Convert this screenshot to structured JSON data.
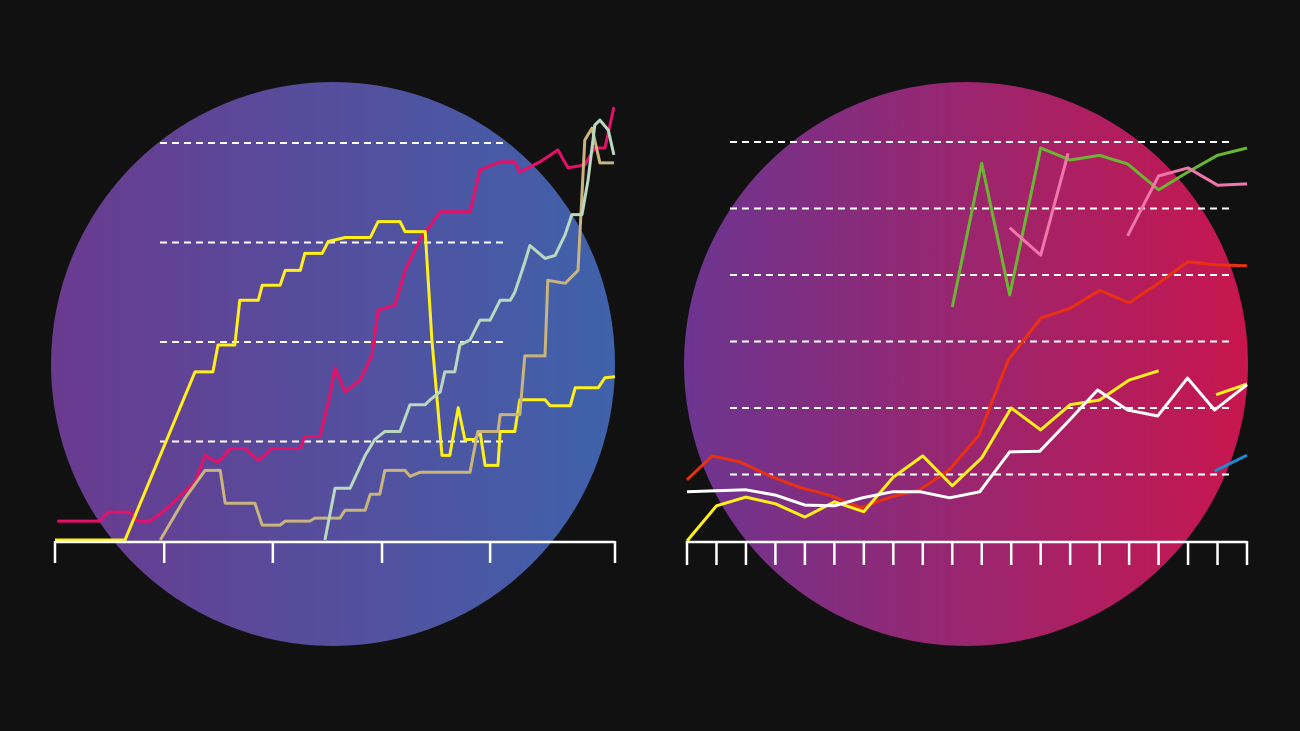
{
  "colors": {
    "background": "#111111",
    "left_circle": [
      "#6a3a8f",
      "#3f62ab"
    ],
    "right_circle": [
      "#6c3590",
      "#c8164e"
    ],
    "grid": "#ffffff",
    "axis": "#ffffff"
  },
  "chart_data": [
    {
      "type": "line",
      "step_style": true,
      "grid": true,
      "grid_style": "dashed",
      "xlim": [
        0,
        100
      ],
      "ylim": [
        0,
        5
      ],
      "gridlines_y": [
        1,
        2,
        3,
        4
      ],
      "x_ticks": [
        0,
        19.5,
        38.9,
        58.4,
        77.7,
        100
      ],
      "series": [
        {
          "color": "#e5106a",
          "points": [
            [
              0.4,
              0.2
            ],
            [
              8,
              0.2
            ],
            [
              9.5,
              0.29
            ],
            [
              13.4,
              0.29
            ],
            [
              14.8,
              0.2
            ],
            [
              17,
              0.2
            ],
            [
              19.6,
              0.31
            ],
            [
              25,
              0.59
            ],
            [
              26.8,
              0.86
            ],
            [
              29.1,
              0.79
            ],
            [
              31.3,
              0.93
            ],
            [
              33.9,
              0.93
            ],
            [
              36.3,
              0.81
            ],
            [
              38.8,
              0.93
            ],
            [
              43.8,
              0.93
            ],
            [
              44.6,
              1.05
            ],
            [
              47.3,
              1.05
            ],
            [
              49.1,
              1.47
            ],
            [
              50,
              1.74
            ],
            [
              51.8,
              1.5
            ],
            [
              54.5,
              1.62
            ],
            [
              56.6,
              1.87
            ],
            [
              57.7,
              2.32
            ],
            [
              60.7,
              2.37
            ],
            [
              62.5,
              2.72
            ],
            [
              65.2,
              3.03
            ],
            [
              68.8,
              3.31
            ],
            [
              74.1,
              3.31
            ],
            [
              75.9,
              3.73
            ],
            [
              79.5,
              3.81
            ],
            [
              82.1,
              3.81
            ],
            [
              83,
              3.71
            ],
            [
              86.6,
              3.81
            ],
            [
              89.8,
              3.93
            ],
            [
              91.6,
              3.75
            ],
            [
              94.6,
              3.78
            ],
            [
              96.4,
              3.95
            ],
            [
              98.2,
              3.95
            ],
            [
              99.8,
              4.36
            ]
          ]
        },
        {
          "color": "#ffef1a",
          "points": [
            [
              0,
              0.01
            ],
            [
              12.5,
              0.01
            ],
            [
              25,
              1.7
            ],
            [
              28.2,
              1.7
            ],
            [
              29.1,
              1.97
            ],
            [
              32.1,
              1.97
            ],
            [
              33,
              2.42
            ],
            [
              36.3,
              2.42
            ],
            [
              37,
              2.57
            ],
            [
              40.2,
              2.57
            ],
            [
              41.1,
              2.72
            ],
            [
              43.8,
              2.72
            ],
            [
              44.6,
              2.89
            ],
            [
              47.7,
              2.89
            ],
            [
              48.8,
              3.01
            ],
            [
              51.8,
              3.05
            ],
            [
              56.3,
              3.05
            ],
            [
              57.7,
              3.21
            ],
            [
              61.6,
              3.21
            ],
            [
              62.5,
              3.11
            ],
            [
              66.1,
              3.11
            ],
            [
              67.3,
              2.02
            ],
            [
              69.1,
              0.86
            ],
            [
              70.5,
              0.86
            ],
            [
              72,
              1.34
            ],
            [
              73.2,
              1.02
            ],
            [
              75,
              1.02
            ],
            [
              75.9,
              1.1
            ],
            [
              76.8,
              0.76
            ],
            [
              79.1,
              0.76
            ],
            [
              79.5,
              1.1
            ],
            [
              82.1,
              1.1
            ],
            [
              83,
              1.42
            ],
            [
              87.5,
              1.42
            ],
            [
              88.4,
              1.36
            ],
            [
              92,
              1.36
            ],
            [
              92.9,
              1.54
            ],
            [
              97,
              1.54
            ],
            [
              98.2,
              1.64
            ],
            [
              100,
              1.65
            ]
          ]
        },
        {
          "color": "#c8b47c",
          "points": [
            [
              18.8,
              0.01
            ],
            [
              23.2,
              0.43
            ],
            [
              26.8,
              0.71
            ],
            [
              29.5,
              0.71
            ],
            [
              30.4,
              0.38
            ],
            [
              35.7,
              0.38
            ],
            [
              37,
              0.16
            ],
            [
              40.2,
              0.16
            ],
            [
              41.1,
              0.2
            ],
            [
              45.5,
              0.2
            ],
            [
              46.4,
              0.23
            ],
            [
              50.9,
              0.23
            ],
            [
              51.8,
              0.31
            ],
            [
              55.4,
              0.31
            ],
            [
              56.3,
              0.47
            ],
            [
              58,
              0.47
            ],
            [
              58.9,
              0.71
            ],
            [
              62.5,
              0.71
            ],
            [
              63.4,
              0.65
            ],
            [
              65.2,
              0.69
            ],
            [
              74.1,
              0.69
            ],
            [
              75.5,
              1.1
            ],
            [
              79.1,
              1.1
            ],
            [
              79.5,
              1.27
            ],
            [
              83,
              1.27
            ],
            [
              83.9,
              1.86
            ],
            [
              87.5,
              1.86
            ],
            [
              88,
              2.62
            ],
            [
              91.1,
              2.59
            ],
            [
              93.4,
              2.72
            ],
            [
              94.6,
              4.03
            ],
            [
              95.9,
              4.15
            ],
            [
              97.3,
              3.8
            ],
            [
              99.8,
              3.8
            ]
          ]
        },
        {
          "color": "#b9d8c0",
          "points": [
            [
              48.2,
              0.01
            ],
            [
              50,
              0.53
            ],
            [
              52.7,
              0.53
            ],
            [
              55.4,
              0.86
            ],
            [
              57.1,
              1.02
            ],
            [
              58.9,
              1.1
            ],
            [
              61.6,
              1.1
            ],
            [
              63.4,
              1.37
            ],
            [
              66.1,
              1.37
            ],
            [
              67,
              1.42
            ],
            [
              68.8,
              1.5
            ],
            [
              69.6,
              1.7
            ],
            [
              71.4,
              1.7
            ],
            [
              72.3,
              1.97
            ],
            [
              74.1,
              2.02
            ],
            [
              75.9,
              2.22
            ],
            [
              77.7,
              2.22
            ],
            [
              79.5,
              2.42
            ],
            [
              81.3,
              2.42
            ],
            [
              82.1,
              2.5
            ],
            [
              83.9,
              2.8
            ],
            [
              84.8,
              2.97
            ],
            [
              87.5,
              2.84
            ],
            [
              89.3,
              2.87
            ],
            [
              91.1,
              3.08
            ],
            [
              92.3,
              3.28
            ],
            [
              94.1,
              3.28
            ],
            [
              95.2,
              3.63
            ],
            [
              96.4,
              4.18
            ],
            [
              97.3,
              4.23
            ],
            [
              98.8,
              4.13
            ],
            [
              99.8,
              3.88
            ]
          ]
        }
      ]
    },
    {
      "type": "line",
      "grid": true,
      "grid_style": "dashed",
      "xlim": [
        0,
        19
      ],
      "ylim": [
        0,
        6
      ],
      "gridlines_y": [
        1,
        2,
        3,
        4,
        5,
        6
      ],
      "x_ticks": [
        0,
        1,
        2,
        3,
        4,
        5,
        6,
        7,
        8,
        9,
        10,
        11,
        12,
        13,
        14,
        15,
        16,
        17,
        18,
        19
      ],
      "series": [
        {
          "color": "#e83012",
          "segments": [
            [
              [
                0,
                0.92
              ],
              [
                0.85,
                1.28
              ],
              [
                1.8,
                1.19
              ],
              [
                2.8,
                0.98
              ],
              [
                3.8,
                0.81
              ],
              [
                4.9,
                0.68
              ],
              [
                5.9,
                0.5
              ],
              [
                6.9,
                0.66
              ],
              [
                7.9,
                0.77
              ],
              [
                8.9,
                1.07
              ],
              [
                9.9,
                1.59
              ],
              [
                10.9,
                2.72
              ],
              [
                12,
                3.35
              ],
              [
                13,
                3.5
              ],
              [
                14,
                3.77
              ],
              [
                15,
                3.58
              ],
              [
                16,
                3.88
              ],
              [
                17,
                4.2
              ],
              [
                18,
                4.15
              ],
              [
                19,
                4.14
              ]
            ]
          ]
        },
        {
          "color": "#ffef1a",
          "segments": [
            [
              [
                0,
                0
              ],
              [
                1,
                0.53
              ],
              [
                2,
                0.66
              ],
              [
                3,
                0.56
              ],
              [
                4,
                0.36
              ],
              [
                5,
                0.59
              ],
              [
                6,
                0.44
              ],
              [
                7,
                0.96
              ],
              [
                8,
                1.28
              ],
              [
                9,
                0.83
              ],
              [
                10,
                1.25
              ],
              [
                11,
                2.0
              ],
              [
                12,
                1.67
              ],
              [
                13,
                2.05
              ],
              [
                14,
                2.12
              ],
              [
                15,
                2.42
              ],
              [
                16,
                2.56
              ]
            ],
            [
              [
                17.95,
                2.2
              ],
              [
                19,
                2.36
              ]
            ]
          ]
        },
        {
          "color": "#ffffff",
          "segments": [
            [
              [
                0,
                0.74
              ],
              [
                2,
                0.77
              ],
              [
                3,
                0.69
              ],
              [
                4,
                0.54
              ],
              [
                5,
                0.53
              ],
              [
                5.95,
                0.65
              ],
              [
                6.97,
                0.74
              ],
              [
                7.92,
                0.74
              ],
              [
                8.91,
                0.65
              ],
              [
                9.93,
                0.74
              ],
              [
                10.95,
                1.34
              ],
              [
                11.97,
                1.35
              ],
              [
                12.98,
                1.82
              ],
              [
                13.93,
                2.27
              ],
              [
                14.95,
                1.97
              ],
              [
                15.97,
                1.88
              ],
              [
                16.98,
                2.45
              ],
              [
                17.9,
                1.97
              ],
              [
                19,
                2.35
              ]
            ]
          ]
        },
        {
          "color": "#6bb533",
          "segments": [
            [
              [
                9,
                3.52
              ],
              [
                10,
                5.68
              ],
              [
                10.95,
                3.7
              ],
              [
                12,
                5.91
              ],
              [
                13,
                5.73
              ],
              [
                14,
                5.8
              ],
              [
                14.95,
                5.67
              ],
              [
                16,
                5.28
              ],
              [
                17,
                5.55
              ],
              [
                18,
                5.8
              ],
              [
                19,
                5.91
              ]
            ]
          ]
        },
        {
          "color": "#ef77ab",
          "segments": [
            [
              [
                10.95,
                4.71
              ],
              [
                12,
                4.3
              ],
              [
                12.93,
                5.83
              ]
            ],
            [
              [
                14.95,
                4.59
              ],
              [
                16,
                5.49
              ],
              [
                17,
                5.61
              ],
              [
                18,
                5.35
              ],
              [
                19,
                5.37
              ]
            ]
          ]
        },
        {
          "color": "#1e8ad0",
          "segments": [
            [
              [
                17.9,
                1.05
              ],
              [
                19,
                1.29
              ]
            ]
          ]
        }
      ]
    }
  ]
}
